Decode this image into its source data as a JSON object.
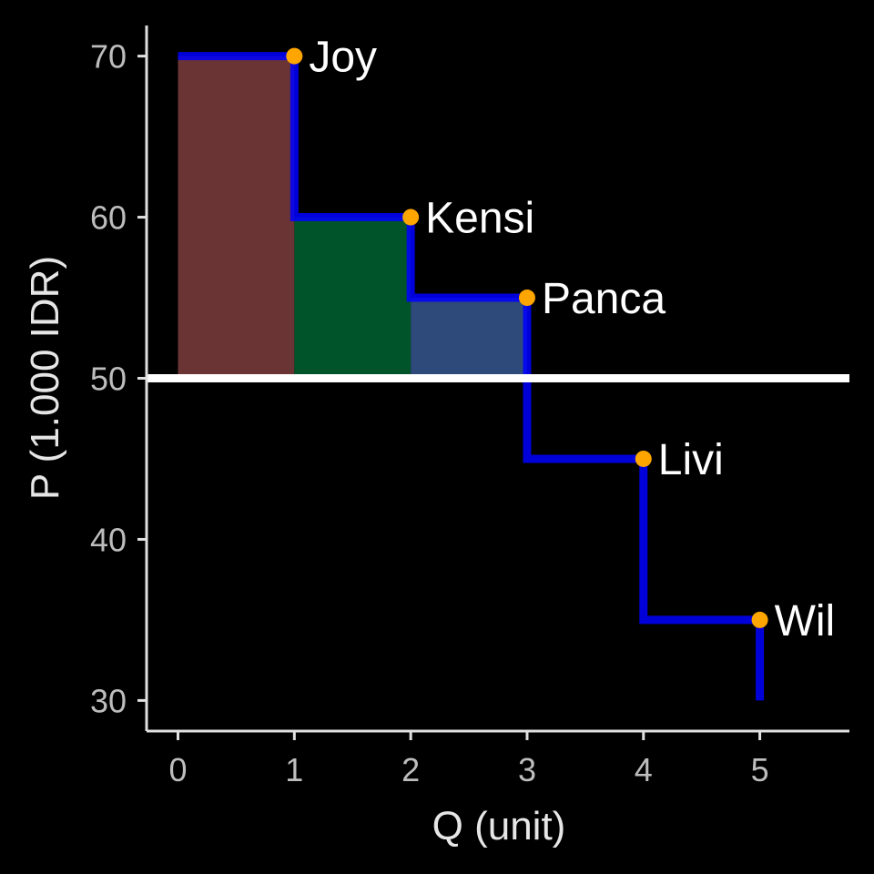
{
  "chart_data": {
    "type": "line",
    "title": "",
    "xlabel": "Q (unit)",
    "ylabel": "P (1.000 IDR)",
    "xlim": [
      -0.27,
      5.77
    ],
    "ylim": [
      28.1,
      71.9
    ],
    "x_ticks": [
      0,
      1,
      2,
      3,
      4,
      5
    ],
    "x_tick_labels": [
      "0",
      "1",
      "2",
      "3",
      "4",
      "5"
    ],
    "y_ticks": [
      30,
      40,
      50,
      60,
      70
    ],
    "y_tick_labels": [
      "30",
      "40",
      "50",
      "60",
      "70"
    ],
    "grid": false,
    "price_line": 50,
    "step_points": [
      {
        "q": 1,
        "p": 70,
        "label": "Joy"
      },
      {
        "q": 2,
        "p": 60,
        "label": "Kensi"
      },
      {
        "q": 3,
        "p": 55,
        "label": "Panca"
      },
      {
        "q": 4,
        "p": 45,
        "label": "Livi"
      },
      {
        "q": 5,
        "p": 35,
        "label": "Wil"
      }
    ],
    "step_end": 30,
    "surplus_areas": [
      {
        "from": 0,
        "to": 1,
        "top": 70,
        "bottom": 50,
        "color": "#6B3434"
      },
      {
        "from": 1,
        "to": 2,
        "top": 60,
        "bottom": 50,
        "color": "#00542A"
      },
      {
        "from": 2,
        "to": 3,
        "top": 55,
        "bottom": 50,
        "color": "#2E4A7A"
      }
    ],
    "colors": {
      "background": "#000000",
      "axis": "#E0E0E0",
      "tick_label": "#BDBDBD",
      "axis_title": "#E6E6E6",
      "step_line": "#0000FF",
      "price_line": "#FFFFFF",
      "point": "#FFA500",
      "label": "#FFFFFF"
    }
  }
}
